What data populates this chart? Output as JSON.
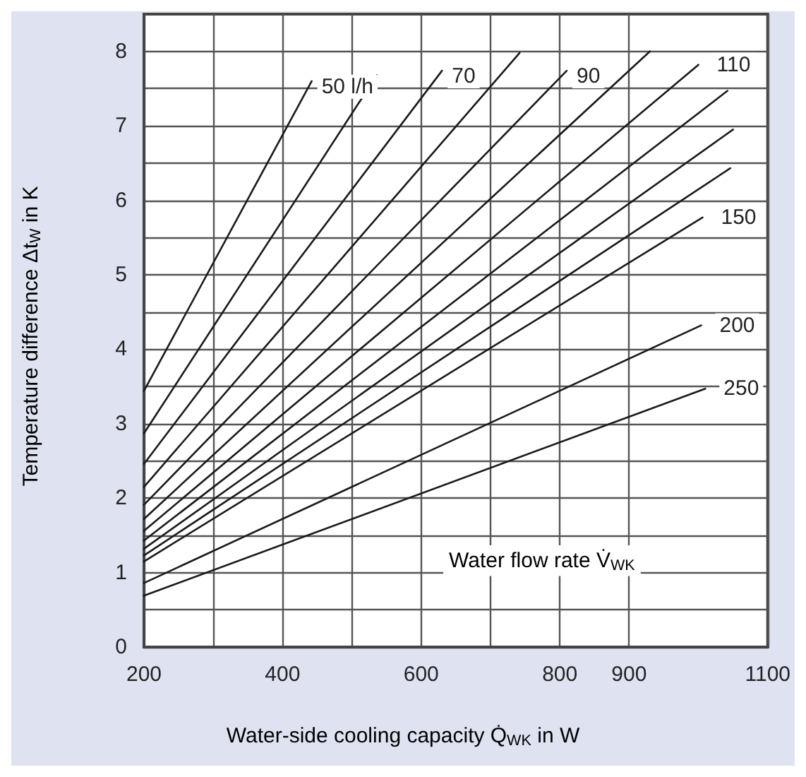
{
  "chart_data": {
    "type": "line",
    "xlabel": "Water-side cooling capacity Q̇$_{WK}$ in W",
    "ylabel": "Temperature difference Δt$_{W}$ in K",
    "annotations": [
      "Water flow rate V̇$_{WK}$"
    ],
    "xlim": [
      200,
      1100
    ],
    "xticks": [
      200,
      {
        "value": 300,
        "label": null
      },
      400,
      {
        "value": 500,
        "label": null
      },
      600,
      {
        "value": 700,
        "label": null
      },
      800,
      900,
      1100
    ],
    "ylim": [
      0,
      8.5
    ],
    "yticks": [
      0,
      {
        "value": 0.5,
        "label": null
      },
      1,
      {
        "value": 1.5,
        "label": null
      },
      2,
      {
        "value": 2.5,
        "label": null
      },
      3,
      {
        "value": 3.5,
        "label": null
      },
      4,
      {
        "value": 4.5,
        "label": null
      },
      5,
      {
        "value": 5.5,
        "label": null
      },
      6,
      {
        "value": 6.5,
        "label": null
      },
      7,
      {
        "value": 7.5,
        "label": null
      },
      8
    ],
    "grid": true,
    "legend": false,
    "marker": "none",
    "line_style": "solid",
    "series": [
      {
        "name": "50 l/h",
        "color": "#1a1a1a",
        "x": [
          200,
          442
        ],
        "values": [
          3.44,
          7.6
        ]
      },
      {
        "color": "#1a1a1a",
        "x": [
          200,
          536
        ],
        "values": [
          2.87,
          7.68
        ]
      },
      {
        "name": "70",
        "color": "#1a1a1a",
        "x": [
          200,
          630
        ],
        "values": [
          2.46,
          7.74
        ]
      },
      {
        "color": "#1a1a1a",
        "x": [
          200,
          742
        ],
        "values": [
          2.15,
          7.98
        ]
      },
      {
        "name": "90",
        "color": "#1a1a1a",
        "x": [
          200,
          810
        ],
        "values": [
          1.91,
          7.74
        ]
      },
      {
        "color": "#1a1a1a",
        "x": [
          200,
          930
        ],
        "values": [
          1.72,
          8.0
        ]
      },
      {
        "name": "110",
        "color": "#1a1a1a",
        "x": [
          200,
          1000
        ],
        "values": [
          1.56,
          7.82
        ]
      },
      {
        "color": "#1a1a1a",
        "x": [
          200,
          1042
        ],
        "values": [
          1.43,
          7.47
        ]
      },
      {
        "color": "#1a1a1a",
        "x": [
          200,
          1050
        ],
        "values": [
          1.32,
          6.95
        ]
      },
      {
        "color": "#1a1a1a",
        "x": [
          200,
          1046
        ],
        "values": [
          1.23,
          6.43
        ]
      },
      {
        "name": "150",
        "color": "#1a1a1a",
        "x": [
          200,
          1006
        ],
        "values": [
          1.15,
          5.77
        ]
      },
      {
        "name": "200",
        "color": "#1a1a1a",
        "x": [
          200,
          1004
        ],
        "values": [
          0.86,
          4.32
        ]
      },
      {
        "name": "250",
        "color": "#1a1a1a",
        "x": [
          200,
          1010
        ],
        "values": [
          0.69,
          3.47
        ]
      }
    ]
  }
}
